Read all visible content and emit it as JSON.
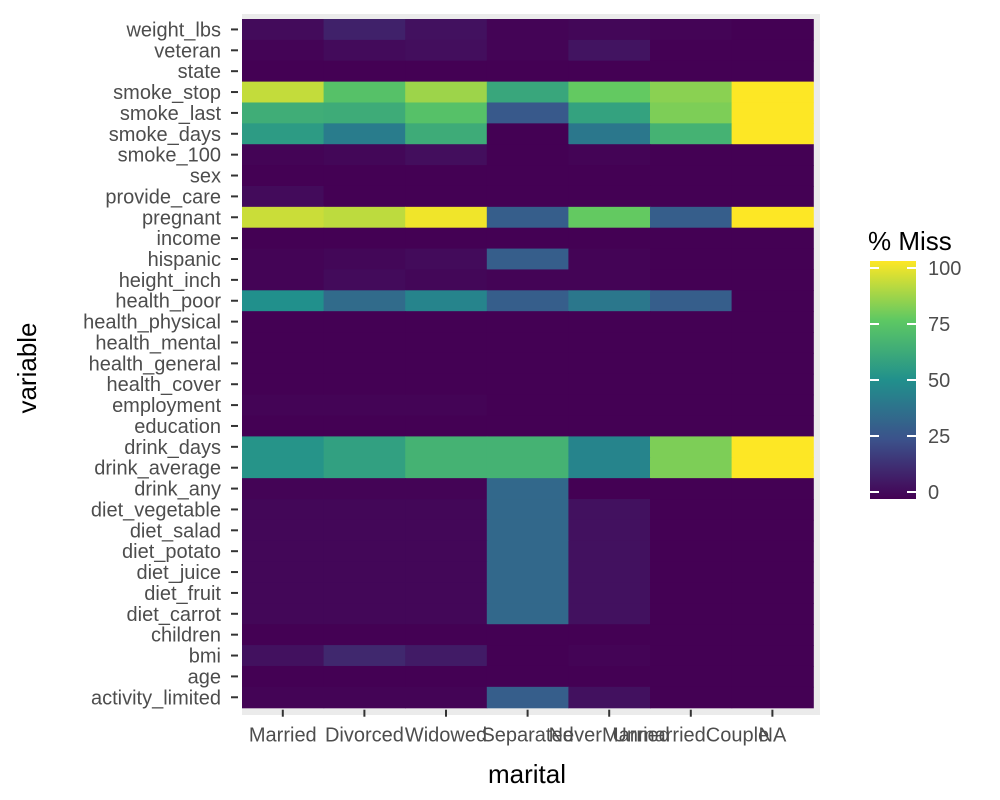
{
  "chart_data": {
    "type": "heatmap",
    "xlabel": "marital",
    "ylabel": "variable",
    "x": [
      "Married",
      "Divorced",
      "Widowed",
      "Separated",
      "NeverMarried",
      "UnmarriedCouple",
      "NA"
    ],
    "y": [
      "weight_lbs",
      "veteran",
      "state",
      "smoke_stop",
      "smoke_last",
      "smoke_days",
      "smoke_100",
      "sex",
      "provide_care",
      "pregnant",
      "income",
      "hispanic",
      "height_inch",
      "health_poor",
      "health_physical",
      "health_mental",
      "health_general",
      "health_cover",
      "employment",
      "education",
      "drink_days",
      "drink_average",
      "drink_any",
      "diet_vegetable",
      "diet_salad",
      "diet_potato",
      "diet_juice",
      "diet_fruit",
      "diet_carrot",
      "children",
      "bmi",
      "age",
      "activity_limited"
    ],
    "values": [
      [
        3,
        10,
        5,
        1,
        2,
        1,
        0
      ],
      [
        1,
        3,
        4,
        1,
        6,
        0,
        0
      ],
      [
        0,
        0,
        0,
        0,
        0,
        0,
        0
      ],
      [
        91,
        72,
        85,
        60,
        76,
        82,
        100
      ],
      [
        63,
        62,
        72,
        28,
        58,
        80,
        100
      ],
      [
        55,
        42,
        62,
        0,
        40,
        65,
        100
      ],
      [
        1,
        2,
        4,
        0,
        1,
        0,
        0
      ],
      [
        0,
        0,
        0,
        0,
        0,
        0,
        0
      ],
      [
        3,
        0,
        0,
        0,
        0,
        0,
        0
      ],
      [
        92,
        90,
        98,
        30,
        76,
        30,
        100
      ],
      [
        0,
        0,
        0,
        0,
        0,
        0,
        0
      ],
      [
        1,
        2,
        3,
        30,
        1,
        0,
        0
      ],
      [
        1,
        3,
        2,
        1,
        1,
        0,
        0
      ],
      [
        50,
        35,
        45,
        30,
        40,
        30,
        0
      ],
      [
        0,
        0,
        0,
        0,
        0,
        0,
        0
      ],
      [
        0,
        0,
        0,
        0,
        0,
        0,
        0
      ],
      [
        0,
        0,
        0,
        0,
        0,
        0,
        0
      ],
      [
        0,
        0,
        0,
        0,
        0,
        0,
        0
      ],
      [
        1,
        1,
        1,
        0,
        0,
        0,
        0
      ],
      [
        0,
        0,
        0,
        0,
        0,
        0,
        0
      ],
      [
        52,
        57,
        65,
        65,
        45,
        80,
        100
      ],
      [
        52,
        57,
        65,
        65,
        45,
        80,
        100
      ],
      [
        1,
        1,
        1,
        34,
        0,
        0,
        0
      ],
      [
        2,
        2,
        2,
        34,
        5,
        0,
        0
      ],
      [
        2,
        2,
        2,
        34,
        5,
        0,
        0
      ],
      [
        2,
        2,
        2,
        34,
        5,
        0,
        0
      ],
      [
        2,
        2,
        2,
        34,
        5,
        0,
        0
      ],
      [
        2,
        2,
        2,
        34,
        5,
        0,
        0
      ],
      [
        2,
        2,
        2,
        34,
        5,
        0,
        0
      ],
      [
        0,
        0,
        0,
        0,
        0,
        0,
        0
      ],
      [
        5,
        12,
        8,
        0,
        1,
        0,
        0
      ],
      [
        0,
        0,
        0,
        0,
        0,
        0,
        0
      ],
      [
        1,
        1,
        1,
        30,
        5,
        0,
        0
      ]
    ],
    "tick_labels_x": [
      "Married",
      "Divorced",
      "Widowed",
      "Separated",
      "NeverMarried",
      "UnmarriedCouple",
      "NA"
    ],
    "color_scale": {
      "title": "% Miss",
      "name": "viridis",
      "range": [
        0,
        100
      ],
      "ticks": [
        0,
        25,
        50,
        75,
        100
      ],
      "stops": [
        "#440154",
        "#3B528B",
        "#21908C",
        "#5DC863",
        "#FDE725"
      ]
    },
    "panel_background": "#EBEBEB",
    "legend_position": "right"
  }
}
